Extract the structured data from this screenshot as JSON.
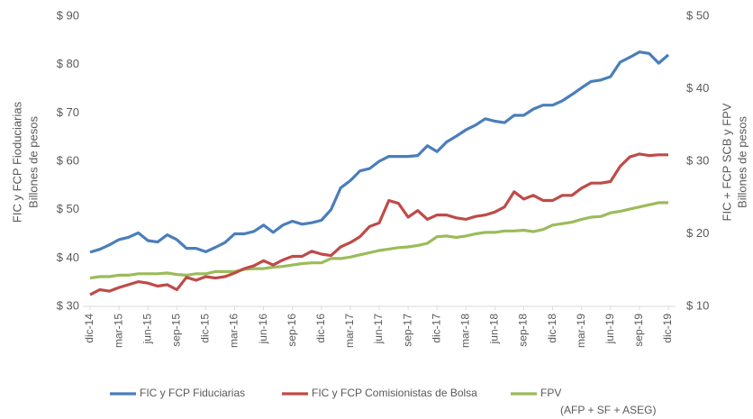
{
  "chart_data": {
    "type": "line",
    "y_label": "FIC y FCP Fioduciarias",
    "y_label_sub": "Billones de pesos",
    "y2_label": "FIC + FCP SCB y FPV",
    "y2_label_sub": "Billones de pesos",
    "categories": [
      "dic-14",
      null,
      null,
      "mar-15",
      null,
      null,
      "jun-15",
      null,
      null,
      "sep-15",
      null,
      null,
      "dic-15",
      null,
      null,
      "mar-16",
      null,
      null,
      "jun-16",
      null,
      null,
      "sep-16",
      null,
      null,
      "dic-16",
      null,
      null,
      "mar-17",
      null,
      null,
      "jun-17",
      null,
      null,
      "sep-17",
      null,
      null,
      "dic-17",
      null,
      null,
      "mar-18",
      null,
      null,
      "jun-18",
      null,
      null,
      "sep-18",
      null,
      null,
      "dic-18",
      null,
      null,
      "mar-19",
      null,
      null,
      "jun-19",
      null,
      null,
      "sep-19",
      null,
      null,
      "dic-19"
    ],
    "series": [
      {
        "name": "FIC y FCP Fiduciarias",
        "color": "#4a7ebb",
        "axis": "y",
        "values": [
          41.2,
          41.8,
          42.7,
          43.8,
          44.3,
          45.2,
          43.6,
          43.3,
          44.8,
          43.8,
          42.0,
          42.0,
          41.3,
          42.2,
          43.2,
          45.0,
          45.0,
          45.5,
          46.8,
          45.3,
          46.8,
          47.6,
          47.0,
          47.3,
          47.8,
          50.0,
          54.5,
          56.0,
          58.0,
          58.5,
          60.0,
          61.0,
          61.0,
          61.0,
          61.2,
          63.2,
          62.0,
          64.0,
          65.2,
          66.5,
          67.5,
          68.8,
          68.3,
          68.0,
          69.5,
          69.5,
          70.8,
          71.6,
          71.6,
          72.5,
          73.8,
          75.2,
          76.5,
          76.8,
          77.5,
          80.5,
          81.5,
          82.6,
          82.3,
          80.3,
          82.0
        ]
      },
      {
        "name": "FIC y FCP Comisionistas de Bolsa",
        "color": "#be4b48",
        "axis": "y2",
        "values": [
          11.6,
          12.3,
          12.1,
          12.6,
          13.0,
          13.4,
          13.2,
          12.8,
          13.0,
          12.3,
          14.0,
          13.6,
          14.1,
          13.9,
          14.1,
          14.6,
          15.2,
          15.6,
          16.3,
          15.7,
          16.4,
          16.9,
          16.9,
          17.6,
          17.2,
          17.0,
          18.2,
          18.8,
          19.6,
          21.0,
          21.5,
          24.6,
          24.2,
          22.3,
          23.2,
          22.0,
          22.6,
          22.6,
          22.2,
          22.0,
          22.4,
          22.6,
          23.0,
          23.7,
          25.8,
          24.8,
          25.3,
          24.6,
          24.6,
          25.3,
          25.3,
          26.3,
          27.0,
          27.0,
          27.2,
          29.3,
          30.6,
          31.0,
          30.8,
          30.9,
          30.9
        ]
      },
      {
        "name": "FPV",
        "color": "#9bbb59",
        "axis": "y2",
        "values": [
          13.9,
          14.1,
          14.1,
          14.3,
          14.3,
          14.5,
          14.5,
          14.5,
          14.6,
          14.4,
          14.3,
          14.5,
          14.5,
          14.8,
          14.8,
          14.8,
          15.1,
          15.2,
          15.2,
          15.4,
          15.5,
          15.7,
          15.9,
          16.0,
          16.0,
          16.6,
          16.6,
          16.8,
          17.1,
          17.4,
          17.7,
          17.9,
          18.1,
          18.2,
          18.4,
          18.7,
          19.6,
          19.7,
          19.5,
          19.7,
          20.0,
          20.2,
          20.2,
          20.4,
          20.4,
          20.5,
          20.3,
          20.6,
          21.2,
          21.4,
          21.6,
          22.0,
          22.3,
          22.4,
          22.9,
          23.1,
          23.4,
          23.7,
          24.0,
          24.3,
          24.3
        ]
      }
    ],
    "legend_note": "(AFP + SF + ASEG)",
    "ylim": [
      30,
      90
    ],
    "yticks": [
      {
        "value": 30,
        "label": "$ 30"
      },
      {
        "value": 40,
        "label": "$ 40"
      },
      {
        "value": 50,
        "label": "$ 50"
      },
      {
        "value": 60,
        "label": "$ 60"
      },
      {
        "value": 70,
        "label": "$ 70"
      },
      {
        "value": 80,
        "label": "$ 80"
      },
      {
        "value": 90,
        "label": "$ 90"
      }
    ],
    "y2lim": [
      10,
      50
    ],
    "y2ticks": [
      {
        "value": 10,
        "label": "$ 10"
      },
      {
        "value": 20,
        "label": "$ 20"
      },
      {
        "value": 30,
        "label": "$ 30"
      },
      {
        "value": 40,
        "label": "$ 40"
      },
      {
        "value": 50,
        "label": "$ 50"
      }
    ],
    "grid": false,
    "legend": "bottom"
  }
}
